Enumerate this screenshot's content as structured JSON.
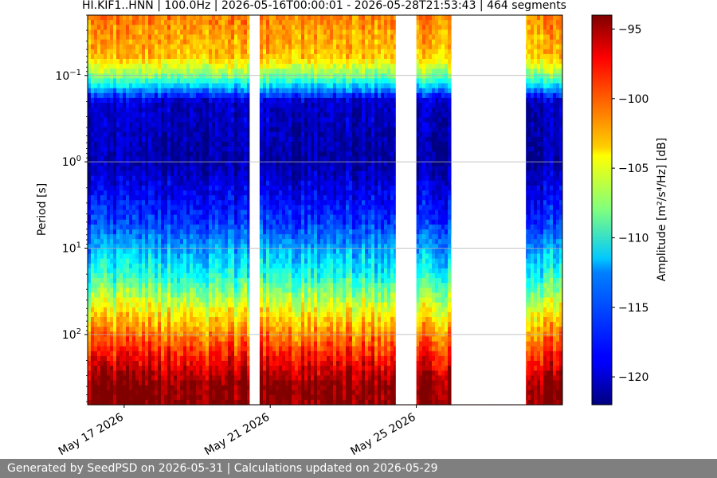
{
  "chart_data": {
    "type": "heatmap",
    "title": "HI.KIF1..HNN | 100.0Hz | 2026-05-16T00:00:01 - 2026-05-28T21:53:43 | 464 segments",
    "xlabel": "",
    "ylabel": "Period [s]",
    "colorbar_label": "Amplitude [m²/s⁴/Hz] [dB]",
    "colormap": "jet",
    "xlim": [
      "2026-05-16T00:00:00",
      "2026-05-29T00:00:00"
    ],
    "x_ticks": [
      "May 17 2026",
      "May 21 2026",
      "May 25 2026"
    ],
    "x_tick_dates": [
      "2026-05-17",
      "2026-05-21",
      "2026-05-25"
    ],
    "y_scale": "log",
    "y_inverted": true,
    "ylim": [
      0.02,
      650
    ],
    "y_ticks": [
      {
        "base": "10",
        "exp": "−1",
        "value": 0.1
      },
      {
        "base": "10",
        "exp": "0",
        "value": 1
      },
      {
        "base": "10",
        "exp": "1",
        "value": 10
      },
      {
        "base": "10",
        "exp": "2",
        "value": 100
      }
    ],
    "grid": "horizontal",
    "clim": [
      -122,
      -94
    ],
    "colorbar_ticks": [
      -95,
      -100,
      -105,
      -110,
      -115,
      -120
    ],
    "data_gaps": [
      [
        "2026-05-20T10:30:00",
        "2026-05-20T17:00:00"
      ],
      [
        "2026-05-24T10:30:00",
        "2026-05-25T00:00:00"
      ],
      [
        "2026-05-25T23:00:00",
        "2026-05-28T00:00:00"
      ]
    ],
    "approx_profile_db": [
      {
        "period_s": 0.02,
        "db": -101
      },
      {
        "period_s": 0.06,
        "db": -103
      },
      {
        "period_s": 0.1,
        "db": -108
      },
      {
        "period_s": 0.2,
        "db": -120
      },
      {
        "period_s": 1,
        "db": -121
      },
      {
        "period_s": 5,
        "db": -117
      },
      {
        "period_s": 20,
        "db": -111
      },
      {
        "period_s": 50,
        "db": -105
      },
      {
        "period_s": 150,
        "db": -99
      },
      {
        "period_s": 400,
        "db": -94
      }
    ]
  },
  "footer": {
    "text": "Generated by SeedPSD on 2026-05-31 | Calculations updated on 2026-05-29"
  }
}
